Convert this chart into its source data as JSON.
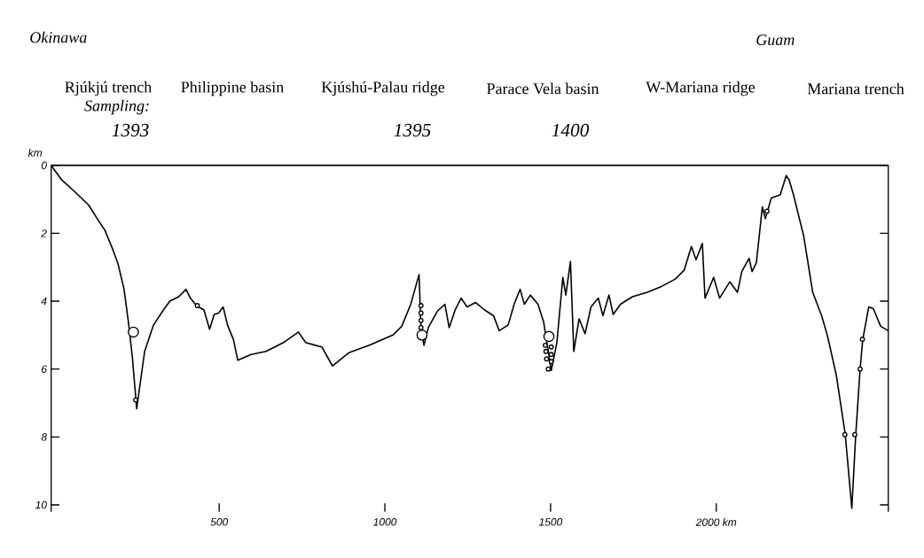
{
  "chart_data": {
    "type": "line",
    "ylabel": "km",
    "annotations": [
      "Okinawa",
      "Guam",
      "Rjúkjú trench",
      "Philippine basin",
      "Kjúshú-Palau ridge",
      "Parace Vela basin",
      "W-Mariana ridge",
      "Mariana trench",
      "Sampling:",
      "1393",
      "1395",
      "1400"
    ],
    "xlim": [
      -7,
      2519
    ],
    "ylim": [
      10.2,
      0
    ],
    "xticks": [
      500,
      1000,
      1500,
      {
        "value": 2000,
        "label": "2000 km"
      }
    ],
    "yticks": [
      0,
      2,
      4,
      6,
      8,
      10
    ],
    "ref_lines": [
      {
        "axis": "y",
        "value": 0
      }
    ],
    "series": [
      {
        "color": "#000000",
        "x": [
          -7,
          25,
          70,
          106,
          132,
          155,
          177,
          195,
          213,
          226,
          238,
          251,
          275,
          302,
          329,
          351,
          378,
          400,
          413,
          431,
          454,
          471,
          485,
          498,
          512,
          525,
          543,
          556,
          596,
          641,
          694,
          739,
          761,
          790,
          810,
          842,
          891,
          953,
          1024,
          1051,
          1078,
          1103,
          1109,
          1118,
          1131,
          1158,
          1181,
          1194,
          1212,
          1230,
          1248,
          1274,
          1301,
          1328,
          1345,
          1372,
          1390,
          1408,
          1421,
          1439,
          1462,
          1479,
          1502,
          1519,
          1537,
          1546,
          1560,
          1570,
          1586,
          1604,
          1622,
          1644,
          1658,
          1676,
          1689,
          1711,
          1747,
          1792,
          1836,
          1876,
          1903,
          1925,
          1939,
          1958,
          1966,
          1992,
          2010,
          2041,
          2064,
          2077,
          2099,
          2108,
          2121,
          2139,
          2148,
          2166,
          2193,
          2211,
          2220,
          2233,
          2264,
          2291,
          2318,
          2336,
          2362,
          2389,
          2409,
          2421,
          2434,
          2442,
          2460,
          2474,
          2496,
          2519
        ],
        "values": [
          0,
          0.43,
          0.83,
          1.17,
          1.57,
          1.91,
          2.43,
          2.91,
          3.65,
          4.61,
          5.65,
          7.17,
          5.48,
          4.7,
          4.3,
          4.0,
          3.87,
          3.65,
          3.91,
          4.13,
          4.26,
          4.83,
          4.39,
          4.35,
          4.17,
          4.7,
          5.13,
          5.74,
          5.57,
          5.48,
          5.22,
          4.91,
          5.22,
          5.3,
          5.35,
          5.91,
          5.52,
          5.3,
          5.0,
          4.74,
          4.09,
          3.22,
          4.78,
          5.3,
          4.78,
          4.3,
          4.09,
          4.78,
          4.26,
          3.91,
          4.17,
          4.04,
          4.26,
          4.43,
          4.87,
          4.7,
          4.09,
          3.65,
          4.09,
          3.82,
          4.09,
          4.61,
          6.04,
          5.22,
          3.3,
          3.82,
          2.83,
          5.48,
          4.52,
          4.96,
          4.17,
          3.91,
          4.43,
          3.82,
          4.39,
          4.09,
          3.87,
          3.74,
          3.56,
          3.35,
          3.09,
          2.39,
          2.78,
          2.3,
          3.91,
          3.3,
          3.91,
          3.43,
          3.74,
          3.13,
          2.74,
          3.13,
          2.87,
          1.22,
          1.57,
          0.96,
          0.87,
          0.3,
          0.43,
          0.87,
          2.09,
          3.74,
          4.43,
          5.04,
          6.17,
          7.91,
          10.1,
          7.91,
          6.0,
          5.13,
          4.17,
          4.22,
          4.74,
          4.87
        ]
      },
      {
        "type": "bubble",
        "color": "#000000",
        "x": [
          241,
          248,
          434,
          1112,
          1109,
          1109,
          1109,
          1109,
          1495,
          1484,
          1502,
          1486,
          1502,
          1488,
          1502,
          1493,
          2153,
          2388,
          2418,
          2434,
          2441
        ],
        "values": [
          4.91,
          6.91,
          4.13,
          5.0,
          4.13,
          4.35,
          4.57,
          4.78,
          5.04,
          5.3,
          5.35,
          5.48,
          5.57,
          5.7,
          5.78,
          6.0,
          1.35,
          7.93,
          7.93,
          6.0,
          5.12
        ],
        "sizes": [
          1,
          0.16,
          0.16,
          1,
          0.16,
          0.16,
          0.16,
          0.16,
          1,
          0.16,
          0.16,
          0.16,
          0.16,
          0.16,
          0.16,
          0.16,
          0.16,
          0.16,
          0.16,
          0.16,
          0.16
        ]
      }
    ]
  }
}
